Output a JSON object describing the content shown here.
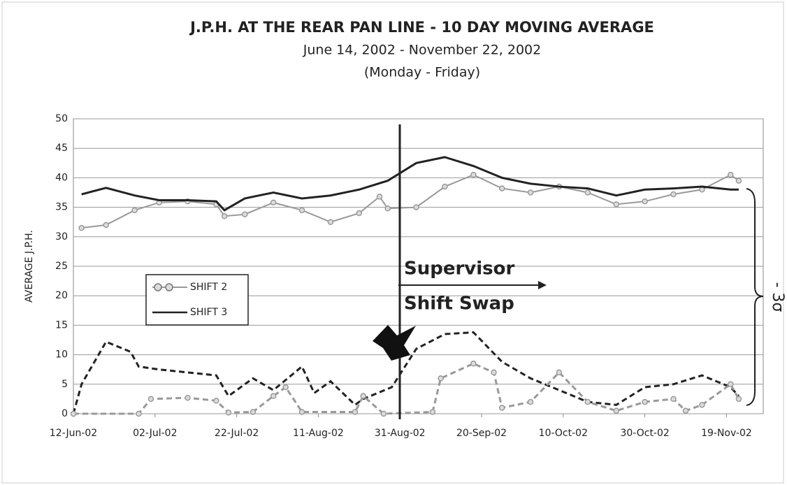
{
  "chart_data": {
    "type": "line",
    "title": "J.P.H. AT THE REAR PAN LINE - 10 DAY MOVING AVERAGE",
    "subtitle": "June 14, 2002 - November 22, 2002",
    "subtitle2": "(Monday - Friday)",
    "y_label": "AVERAGE J.P.H.",
    "annotations": [
      "Supervisor",
      "Shift Swap",
      "- 3σ"
    ],
    "xlim": [
      "2002-06-12",
      "2002-11-28"
    ],
    "xticks": [
      {
        "value": "2002-06-12",
        "label": "12-Jun-02"
      },
      {
        "value": "2002-07-02",
        "label": "02-Jul-02"
      },
      {
        "value": "2002-07-22",
        "label": "22-Jul-02"
      },
      {
        "value": "2002-08-11",
        "label": "11-Aug-02"
      },
      {
        "value": "2002-08-31",
        "label": "31-Aug-02"
      },
      {
        "value": "2002-09-20",
        "label": "20-Sep-02"
      },
      {
        "value": "2002-10-10",
        "label": "10-Oct-02"
      },
      {
        "value": "2002-10-30",
        "label": "30-Oct-02"
      },
      {
        "value": "2002-11-19",
        "label": "19-Nov-02"
      }
    ],
    "ylim": [
      0,
      50
    ],
    "yticks": [
      0,
      5,
      10,
      15,
      20,
      25,
      30,
      35,
      40,
      45,
      50
    ],
    "grid": true,
    "series": [
      {
        "name": "SHIFT 2",
        "color": "#999999",
        "marker": "circle",
        "x": [
          "2002-06-14",
          "2002-06-20",
          "2002-06-27",
          "2002-07-03",
          "2002-07-10",
          "2002-07-17",
          "2002-07-19",
          "2002-07-24",
          "2002-07-31",
          "2002-08-07",
          "2002-08-14",
          "2002-08-21",
          "2002-08-26",
          "2002-08-28",
          "2002-09-04",
          "2002-09-11",
          "2002-09-18",
          "2002-09-25",
          "2002-10-02",
          "2002-10-09",
          "2002-10-16",
          "2002-10-23",
          "2002-10-30",
          "2002-11-06",
          "2002-11-13",
          "2002-11-20",
          "2002-11-22"
        ],
        "values": [
          31.5,
          32,
          34.5,
          35.8,
          36,
          35.5,
          33.5,
          33.8,
          35.8,
          34.5,
          32.5,
          34,
          36.8,
          34.8,
          35,
          38.5,
          40.5,
          38.2,
          37.5,
          38.5,
          37.5,
          35.5,
          36,
          37.2,
          38,
          40.5,
          39.5
        ]
      },
      {
        "name": "SHIFT 3",
        "color": "#222222",
        "marker": "none",
        "x": [
          "2002-06-14",
          "2002-06-20",
          "2002-06-27",
          "2002-07-03",
          "2002-07-10",
          "2002-07-17",
          "2002-07-19",
          "2002-07-24",
          "2002-07-31",
          "2002-08-07",
          "2002-08-14",
          "2002-08-21",
          "2002-08-28",
          "2002-09-04",
          "2002-09-11",
          "2002-09-18",
          "2002-09-25",
          "2002-10-02",
          "2002-10-09",
          "2002-10-16",
          "2002-10-23",
          "2002-10-30",
          "2002-11-06",
          "2002-11-13",
          "2002-11-20",
          "2002-11-22"
        ],
        "values": [
          37.2,
          38.3,
          37,
          36.2,
          36.2,
          36,
          34.5,
          36.5,
          37.5,
          36.5,
          37,
          38,
          39.5,
          42.5,
          43.5,
          42,
          40,
          39,
          38.5,
          38.2,
          37,
          38,
          38.2,
          38.5,
          38,
          38
        ]
      },
      {
        "color": "#222222",
        "marker": "none",
        "dash": true,
        "x": [
          "2002-06-12",
          "2002-06-14",
          "2002-06-20",
          "2002-06-26",
          "2002-06-28",
          "2002-07-03",
          "2002-07-10",
          "2002-07-17",
          "2002-07-20",
          "2002-07-26",
          "2002-07-31",
          "2002-08-07",
          "2002-08-10",
          "2002-08-14",
          "2002-08-20",
          "2002-08-22",
          "2002-08-29",
          "2002-09-04",
          "2002-09-11",
          "2002-09-18",
          "2002-09-25",
          "2002-10-02",
          "2002-10-09",
          "2002-10-16",
          "2002-10-23",
          "2002-10-30",
          "2002-11-06",
          "2002-11-13",
          "2002-11-20",
          "2002-11-22"
        ],
        "values": [
          0,
          5,
          12.2,
          10.5,
          8,
          7.5,
          7,
          6.5,
          3,
          6,
          4,
          8,
          3.5,
          5.5,
          1.5,
          2.5,
          4.5,
          11,
          13.5,
          13.8,
          8.8,
          6,
          4,
          2,
          1.5,
          4.5,
          5,
          6.5,
          4.5,
          3
        ]
      },
      {
        "color": "#999999",
        "marker": "circle",
        "dash": true,
        "x": [
          "2002-06-12",
          "2002-06-28",
          "2002-07-01",
          "2002-07-10",
          "2002-07-17",
          "2002-07-20",
          "2002-07-26",
          "2002-07-31",
          "2002-08-03",
          "2002-08-07",
          "2002-08-20",
          "2002-08-22",
          "2002-08-27",
          "2002-09-08",
          "2002-09-10",
          "2002-09-18",
          "2002-09-23",
          "2002-09-25",
          "2002-10-02",
          "2002-10-09",
          "2002-10-16",
          "2002-10-23",
          "2002-10-30",
          "2002-11-06",
          "2002-11-09",
          "2002-11-13",
          "2002-11-20",
          "2002-11-22"
        ],
        "values": [
          0,
          0,
          2.5,
          2.7,
          2.2,
          0.2,
          0.3,
          3,
          4.5,
          0.3,
          0.3,
          3,
          0,
          0.3,
          6,
          8.5,
          7,
          1,
          2,
          7,
          2,
          0.5,
          2,
          2.5,
          0.5,
          1.5,
          5,
          2.5
        ]
      }
    ]
  }
}
